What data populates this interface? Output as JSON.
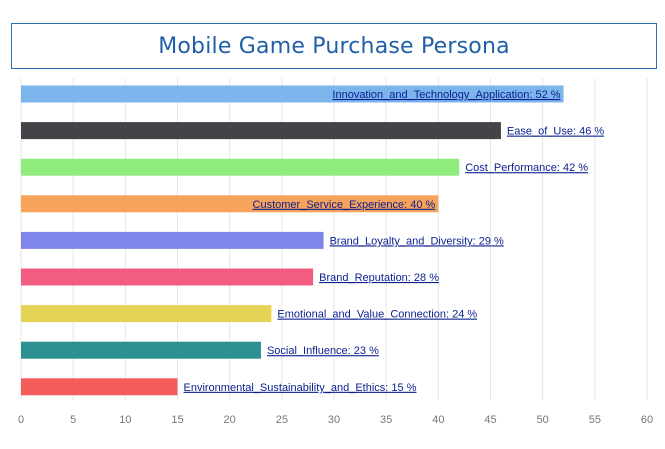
{
  "title": "Mobile Game Purchase Persona",
  "chart_data": {
    "type": "bar",
    "orientation": "horizontal",
    "title": "Mobile Game Purchase Persona",
    "xlabel": "",
    "ylabel": "",
    "xlim": [
      0,
      60
    ],
    "x_ticks": [
      0,
      5,
      10,
      15,
      20,
      25,
      30,
      35,
      40,
      45,
      50,
      55,
      60
    ],
    "grid": "vertical",
    "legend": "none",
    "categories": [
      "Innovation_and_Technology_Application",
      "Ease_of_Use",
      "Cost_Performance",
      "Customer_Service_Experience",
      "Brand_Loyalty_and_Diversity",
      "Brand_Reputation",
      "Emotional_and_Value_Connection",
      "Social_Influence",
      "Environmental_Sustainability_and_Ethics"
    ],
    "values": [
      52,
      46,
      42,
      40,
      29,
      28,
      24,
      23,
      15
    ],
    "labels": [
      "Innovation_and_Technology_Application: 52 %",
      "Ease_of_Use: 46 %",
      "Cost_Performance: 42 %",
      "Customer_Service_Experience: 40 %",
      "Brand_Loyalty_and_Diversity: 29 %",
      "Brand_Reputation: 28 %",
      "Emotional_and_Value_Connection: 24 %",
      "Social_Influence: 23 %",
      "Environmental_Sustainability_and_Ethics: 15 %"
    ],
    "label_position": [
      "inside",
      "outside",
      "outside",
      "inside",
      "outside",
      "outside",
      "outside",
      "outside",
      "outside"
    ],
    "colors": [
      "#7cb5ec",
      "#434348",
      "#90ed7d",
      "#f7a35c",
      "#8085e9",
      "#f15c80",
      "#e4d354",
      "#2b908f",
      "#f45b5b"
    ]
  }
}
